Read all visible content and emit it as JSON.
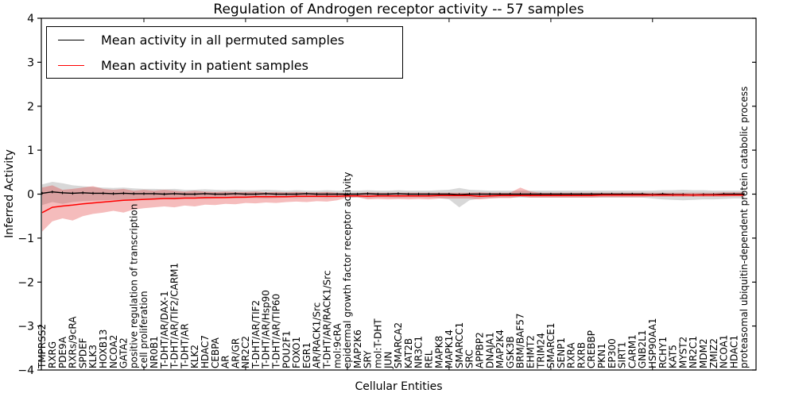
{
  "figure": {
    "title": "Regulation of Androgen receptor activity -- 57 samples",
    "xlabel": "Cellular Entities",
    "ylabel": "Inferred Activity"
  },
  "legend": {
    "entries": [
      {
        "label": "Mean activity in all permuted samples",
        "color": "#000000"
      },
      {
        "label": "Mean activity in patient samples",
        "color": "#ff0000"
      }
    ]
  },
  "chart_data": {
    "type": "line",
    "title": "Regulation of Androgen receptor activity -- 57 samples",
    "xlabel": "Cellular Entities",
    "ylabel": "Inferred Activity",
    "ylim": [
      -4,
      4
    ],
    "yticks": [
      -4,
      -3,
      -2,
      -1,
      0,
      1,
      2,
      3,
      4
    ],
    "grid": false,
    "legend_position": "upper left",
    "band_colors": {
      "permuted": "#999999",
      "patient": "#e03030"
    },
    "categories": [
      "TMPRSS2",
      "RXRG",
      "PDE9A",
      "RXRs/9cRA",
      "SPDEF",
      "KLK3",
      "HOXB13",
      "NCOA2",
      "GATA2",
      "positive regulation of transcription",
      "cell proliferation",
      "NR0B1",
      "T-DHT/AR/DAX-1",
      "T-DHT/AR/TIF2/CARM1",
      "T-DHT/AR",
      "KLK2",
      "HDAC7",
      "CEBPA",
      "AR",
      "AR/GR",
      "NR2C2",
      "T-DHT/AR/TIF2",
      "T-DHT/AR/Hsp90",
      "T-DHT/AR/TIP60",
      "POU2F1",
      "FOXO1",
      "EGR1",
      "AR/RACK1/Src",
      "T-DHT/AR/RACK1/Src",
      "mol:9cRA",
      "epidermal growth factor receptor activity",
      "MAP2K6",
      "SRY",
      "mol:T-DHT",
      "JUN",
      "SMARCA2",
      "KAT2B",
      "NR3C1",
      "REL",
      "MAPK8",
      "MAPK14",
      "SMARCC1",
      "SRC",
      "APPBP2",
      "DNAJA1",
      "MAP2K4",
      "GSK3B",
      "BRM/BAF57",
      "EHMT2",
      "TRIM24",
      "SMARCE1",
      "SENP1",
      "RXRA",
      "RXRB",
      "CREBBP",
      "PKN1",
      "EP300",
      "SIRT1",
      "CARM1",
      "GNB2L1",
      "HSP90AA1",
      "RCHY1",
      "KAT5",
      "MYST2",
      "NR2C1",
      "MDM2",
      "ZMIZ2",
      "NCOA1",
      "HDAC1",
      "proteasomal ubiquitin-dependent protein catabolic process"
    ],
    "series": [
      {
        "name": "Mean activity in all permuted samples",
        "color": "#000000",
        "values": [
          0.02,
          0.05,
          0.03,
          0.02,
          0.03,
          0.02,
          0.02,
          0.01,
          0.02,
          0.01,
          0.01,
          0.01,
          0.0,
          0.01,
          0.0,
          0.0,
          0.01,
          0.0,
          0.0,
          0.01,
          0.0,
          0.0,
          0.01,
          0.0,
          0.0,
          0.0,
          0.01,
          0.0,
          0.0,
          0.0,
          0.0,
          0.0,
          0.01,
          0.0,
          0.0,
          0.01,
          0.0,
          0.0,
          0.0,
          0.0,
          0.0,
          -0.01,
          0.0,
          0.0,
          0.0,
          0.0,
          0.0,
          0.0,
          0.0,
          0.0,
          0.0,
          0.0,
          0.0,
          0.0,
          0.0,
          0.0,
          0.0,
          0.0,
          0.0,
          0.0,
          -0.01,
          0.0,
          -0.01,
          -0.01,
          -0.02,
          -0.01,
          -0.01,
          0.0,
          0.0,
          0.0
        ],
        "band_lo": [
          -0.25,
          -0.18,
          -0.22,
          -0.18,
          -0.16,
          -0.15,
          -0.14,
          -0.13,
          -0.14,
          -0.12,
          -0.12,
          -0.11,
          -0.11,
          -0.12,
          -0.1,
          -0.1,
          -0.11,
          -0.1,
          -0.09,
          -0.1,
          -0.09,
          -0.09,
          -0.1,
          -0.09,
          -0.08,
          -0.09,
          -0.08,
          -0.08,
          -0.09,
          -0.08,
          -0.08,
          -0.08,
          -0.09,
          -0.08,
          -0.08,
          -0.09,
          -0.08,
          -0.08,
          -0.08,
          -0.09,
          -0.12,
          -0.3,
          -0.14,
          -0.1,
          -0.09,
          -0.08,
          -0.08,
          -0.08,
          -0.08,
          -0.08,
          -0.08,
          -0.08,
          -0.08,
          -0.08,
          -0.08,
          -0.08,
          -0.08,
          -0.08,
          -0.08,
          -0.08,
          -0.1,
          -0.12,
          -0.13,
          -0.14,
          -0.13,
          -0.12,
          -0.12,
          -0.11,
          -0.1,
          -0.1
        ],
        "band_hi": [
          0.22,
          0.28,
          0.25,
          0.2,
          0.18,
          0.16,
          0.15,
          0.14,
          0.15,
          0.13,
          0.12,
          0.12,
          0.11,
          0.12,
          0.1,
          0.1,
          0.11,
          0.1,
          0.09,
          0.1,
          0.09,
          0.09,
          0.1,
          0.09,
          0.08,
          0.09,
          0.08,
          0.08,
          0.09,
          0.08,
          0.08,
          0.08,
          0.09,
          0.08,
          0.08,
          0.09,
          0.08,
          0.08,
          0.08,
          0.09,
          0.1,
          0.14,
          0.1,
          0.09,
          0.08,
          0.08,
          0.08,
          0.08,
          0.08,
          0.08,
          0.08,
          0.08,
          0.08,
          0.08,
          0.08,
          0.08,
          0.08,
          0.08,
          0.08,
          0.08,
          0.08,
          0.09,
          0.09,
          0.1,
          0.09,
          0.09,
          0.08,
          0.08,
          0.08,
          0.08
        ]
      },
      {
        "name": "Mean activity in patient samples",
        "color": "#ff0000",
        "values": [
          -0.42,
          -0.3,
          -0.27,
          -0.25,
          -0.22,
          -0.2,
          -0.18,
          -0.16,
          -0.14,
          -0.13,
          -0.12,
          -0.11,
          -0.1,
          -0.1,
          -0.09,
          -0.09,
          -0.08,
          -0.08,
          -0.08,
          -0.07,
          -0.07,
          -0.06,
          -0.06,
          -0.06,
          -0.06,
          -0.05,
          -0.05,
          -0.05,
          -0.05,
          -0.05,
          -0.04,
          -0.04,
          -0.05,
          -0.04,
          -0.04,
          -0.04,
          -0.04,
          -0.04,
          -0.04,
          -0.03,
          -0.03,
          -0.03,
          -0.03,
          -0.05,
          -0.04,
          -0.03,
          -0.03,
          -0.03,
          -0.03,
          -0.03,
          -0.03,
          -0.03,
          -0.03,
          -0.03,
          -0.03,
          -0.02,
          -0.02,
          -0.02,
          -0.02,
          -0.02,
          -0.02,
          -0.02,
          -0.02,
          -0.02,
          -0.02,
          -0.02,
          -0.02,
          -0.02,
          -0.02,
          -0.02
        ],
        "band_lo": [
          -0.85,
          -0.62,
          -0.55,
          -0.6,
          -0.5,
          -0.45,
          -0.42,
          -0.38,
          -0.42,
          -0.35,
          -0.32,
          -0.3,
          -0.28,
          -0.3,
          -0.26,
          -0.28,
          -0.24,
          -0.25,
          -0.22,
          -0.23,
          -0.2,
          -0.21,
          -0.19,
          -0.2,
          -0.18,
          -0.17,
          -0.18,
          -0.16,
          -0.17,
          -0.14,
          -0.08,
          -0.07,
          -0.12,
          -0.11,
          -0.12,
          -0.11,
          -0.12,
          -0.11,
          -0.12,
          -0.1,
          -0.1,
          -0.1,
          -0.1,
          -0.12,
          -0.1,
          -0.09,
          -0.09,
          -0.06,
          -0.08,
          -0.08,
          -0.08,
          -0.08,
          -0.08,
          -0.08,
          -0.08,
          -0.07,
          -0.07,
          -0.07,
          -0.07,
          -0.07,
          -0.06,
          -0.06,
          -0.06,
          -0.06,
          -0.06,
          -0.06,
          -0.06,
          -0.06,
          -0.05,
          -0.05
        ],
        "band_hi": [
          0.15,
          0.2,
          0.1,
          0.12,
          0.15,
          0.18,
          0.12,
          0.1,
          0.12,
          0.08,
          0.1,
          0.08,
          0.1,
          0.08,
          0.06,
          0.08,
          0.06,
          0.05,
          0.06,
          0.05,
          0.05,
          0.06,
          0.04,
          0.05,
          0.04,
          0.05,
          0.04,
          0.04,
          0.05,
          0.03,
          0.02,
          0.02,
          0.04,
          0.03,
          0.03,
          0.03,
          0.03,
          0.03,
          0.03,
          0.03,
          0.03,
          0.03,
          0.03,
          0.04,
          0.03,
          0.03,
          0.03,
          0.15,
          0.06,
          0.03,
          0.03,
          0.03,
          0.03,
          0.03,
          0.03,
          0.03,
          0.03,
          0.03,
          0.03,
          0.03,
          0.03,
          0.03,
          0.03,
          0.03,
          0.03,
          0.03,
          0.03,
          0.04,
          0.04,
          0.04
        ]
      }
    ]
  }
}
